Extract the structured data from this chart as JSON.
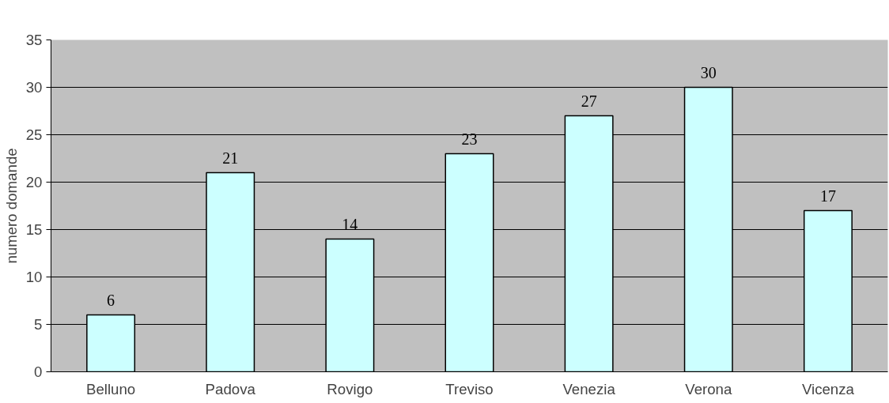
{
  "chart_data": {
    "type": "bar",
    "ylabel": "numero domande",
    "categories": [
      "Belluno",
      "Padova",
      "Rovigo",
      "Treviso",
      "Venezia",
      "Verona",
      "Vicenza"
    ],
    "values": [
      6,
      21,
      14,
      23,
      27,
      30,
      17
    ],
    "color": "#ccffff",
    "ylim": [
      0,
      35
    ],
    "yticks": [
      0,
      5,
      10,
      15,
      20,
      25,
      30,
      35
    ],
    "grid": "y",
    "data_labels": true
  }
}
